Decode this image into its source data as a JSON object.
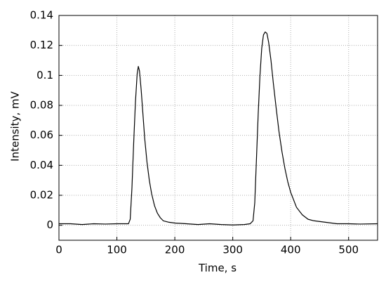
{
  "chart_data": {
    "type": "line",
    "xlabel": "Time, s",
    "ylabel": "Intensity, mV",
    "x": [
      0,
      20,
      40,
      60,
      80,
      100,
      110,
      120,
      123,
      126,
      129,
      132,
      135,
      137,
      139,
      142,
      145,
      148,
      152,
      156,
      160,
      165,
      170,
      175,
      180,
      190,
      200,
      220,
      240,
      260,
      280,
      300,
      320,
      330,
      335,
      338,
      341,
      344,
      347,
      350,
      353,
      356,
      359,
      362,
      366,
      370,
      375,
      380,
      385,
      390,
      395,
      400,
      410,
      420,
      430,
      440,
      460,
      480,
      500,
      520,
      550
    ],
    "values": [
      0.001,
      0.001,
      0.0005,
      0.001,
      0.0008,
      0.001,
      0.001,
      0.001,
      0.004,
      0.025,
      0.055,
      0.082,
      0.101,
      0.106,
      0.103,
      0.09,
      0.074,
      0.058,
      0.042,
      0.03,
      0.021,
      0.013,
      0.008,
      0.005,
      0.003,
      0.002,
      0.0015,
      0.001,
      0.0005,
      0.001,
      0.0005,
      0.0002,
      0.0005,
      0.001,
      0.003,
      0.015,
      0.045,
      0.075,
      0.1,
      0.118,
      0.127,
      0.129,
      0.128,
      0.122,
      0.11,
      0.095,
      0.078,
      0.062,
      0.049,
      0.038,
      0.029,
      0.022,
      0.012,
      0.007,
      0.004,
      0.003,
      0.002,
      0.001,
      0.001,
      0.0008,
      0.001
    ],
    "color": "#000000",
    "xlim": [
      0,
      550
    ],
    "xticks": [
      0,
      100,
      200,
      300,
      400,
      500
    ],
    "ylim": [
      -0.01,
      0.14
    ],
    "yticks": [
      0,
      0.02,
      0.04,
      0.06,
      0.08,
      0.1,
      0.12,
      0.14
    ],
    "grid": true
  }
}
